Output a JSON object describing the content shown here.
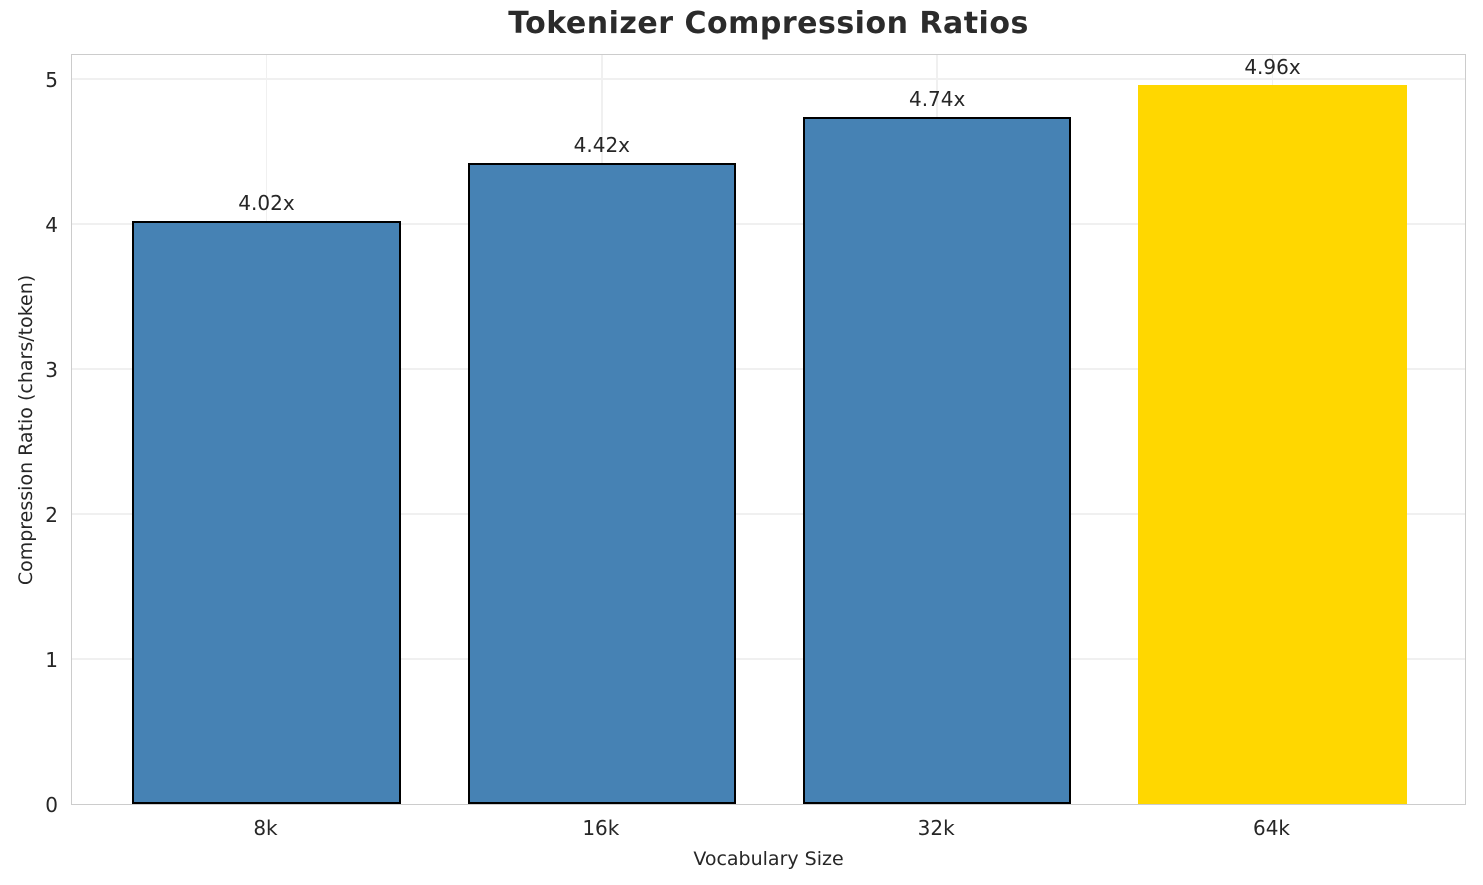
{
  "chart_data": {
    "type": "bar",
    "title": "Tokenizer Compression Ratios",
    "xlabel": "Vocabulary Size",
    "ylabel": "Compression Ratio (chars/token)",
    "categories": [
      "8k",
      "16k",
      "32k",
      "64k"
    ],
    "values": [
      4.02,
      4.42,
      4.74,
      4.96
    ],
    "bar_labels": [
      "4.02x",
      "4.42x",
      "4.74x",
      "4.96x"
    ],
    "bar_colors": [
      "#4682B4",
      "#4682B4",
      "#4682B4",
      "#FFD700"
    ],
    "bar_edge_colors": [
      "#000000",
      "#000000",
      "#000000",
      "none"
    ],
    "yticks": [
      "0",
      "1",
      "2",
      "3",
      "4",
      "5"
    ],
    "ytick_values": [
      0,
      1,
      2,
      3,
      4,
      5
    ],
    "ylim": [
      0,
      5.18
    ],
    "grid": true,
    "legend_position": "none",
    "highlight_index": 3
  },
  "colors": {
    "background": "#ffffff",
    "grid": "#f0f0f0",
    "spine": "#cccccc",
    "text": "#262626",
    "title": "#2b2b2b",
    "bar_default": "#4682B4",
    "bar_highlight": "#FFD700",
    "bar_edge": "#000000"
  }
}
